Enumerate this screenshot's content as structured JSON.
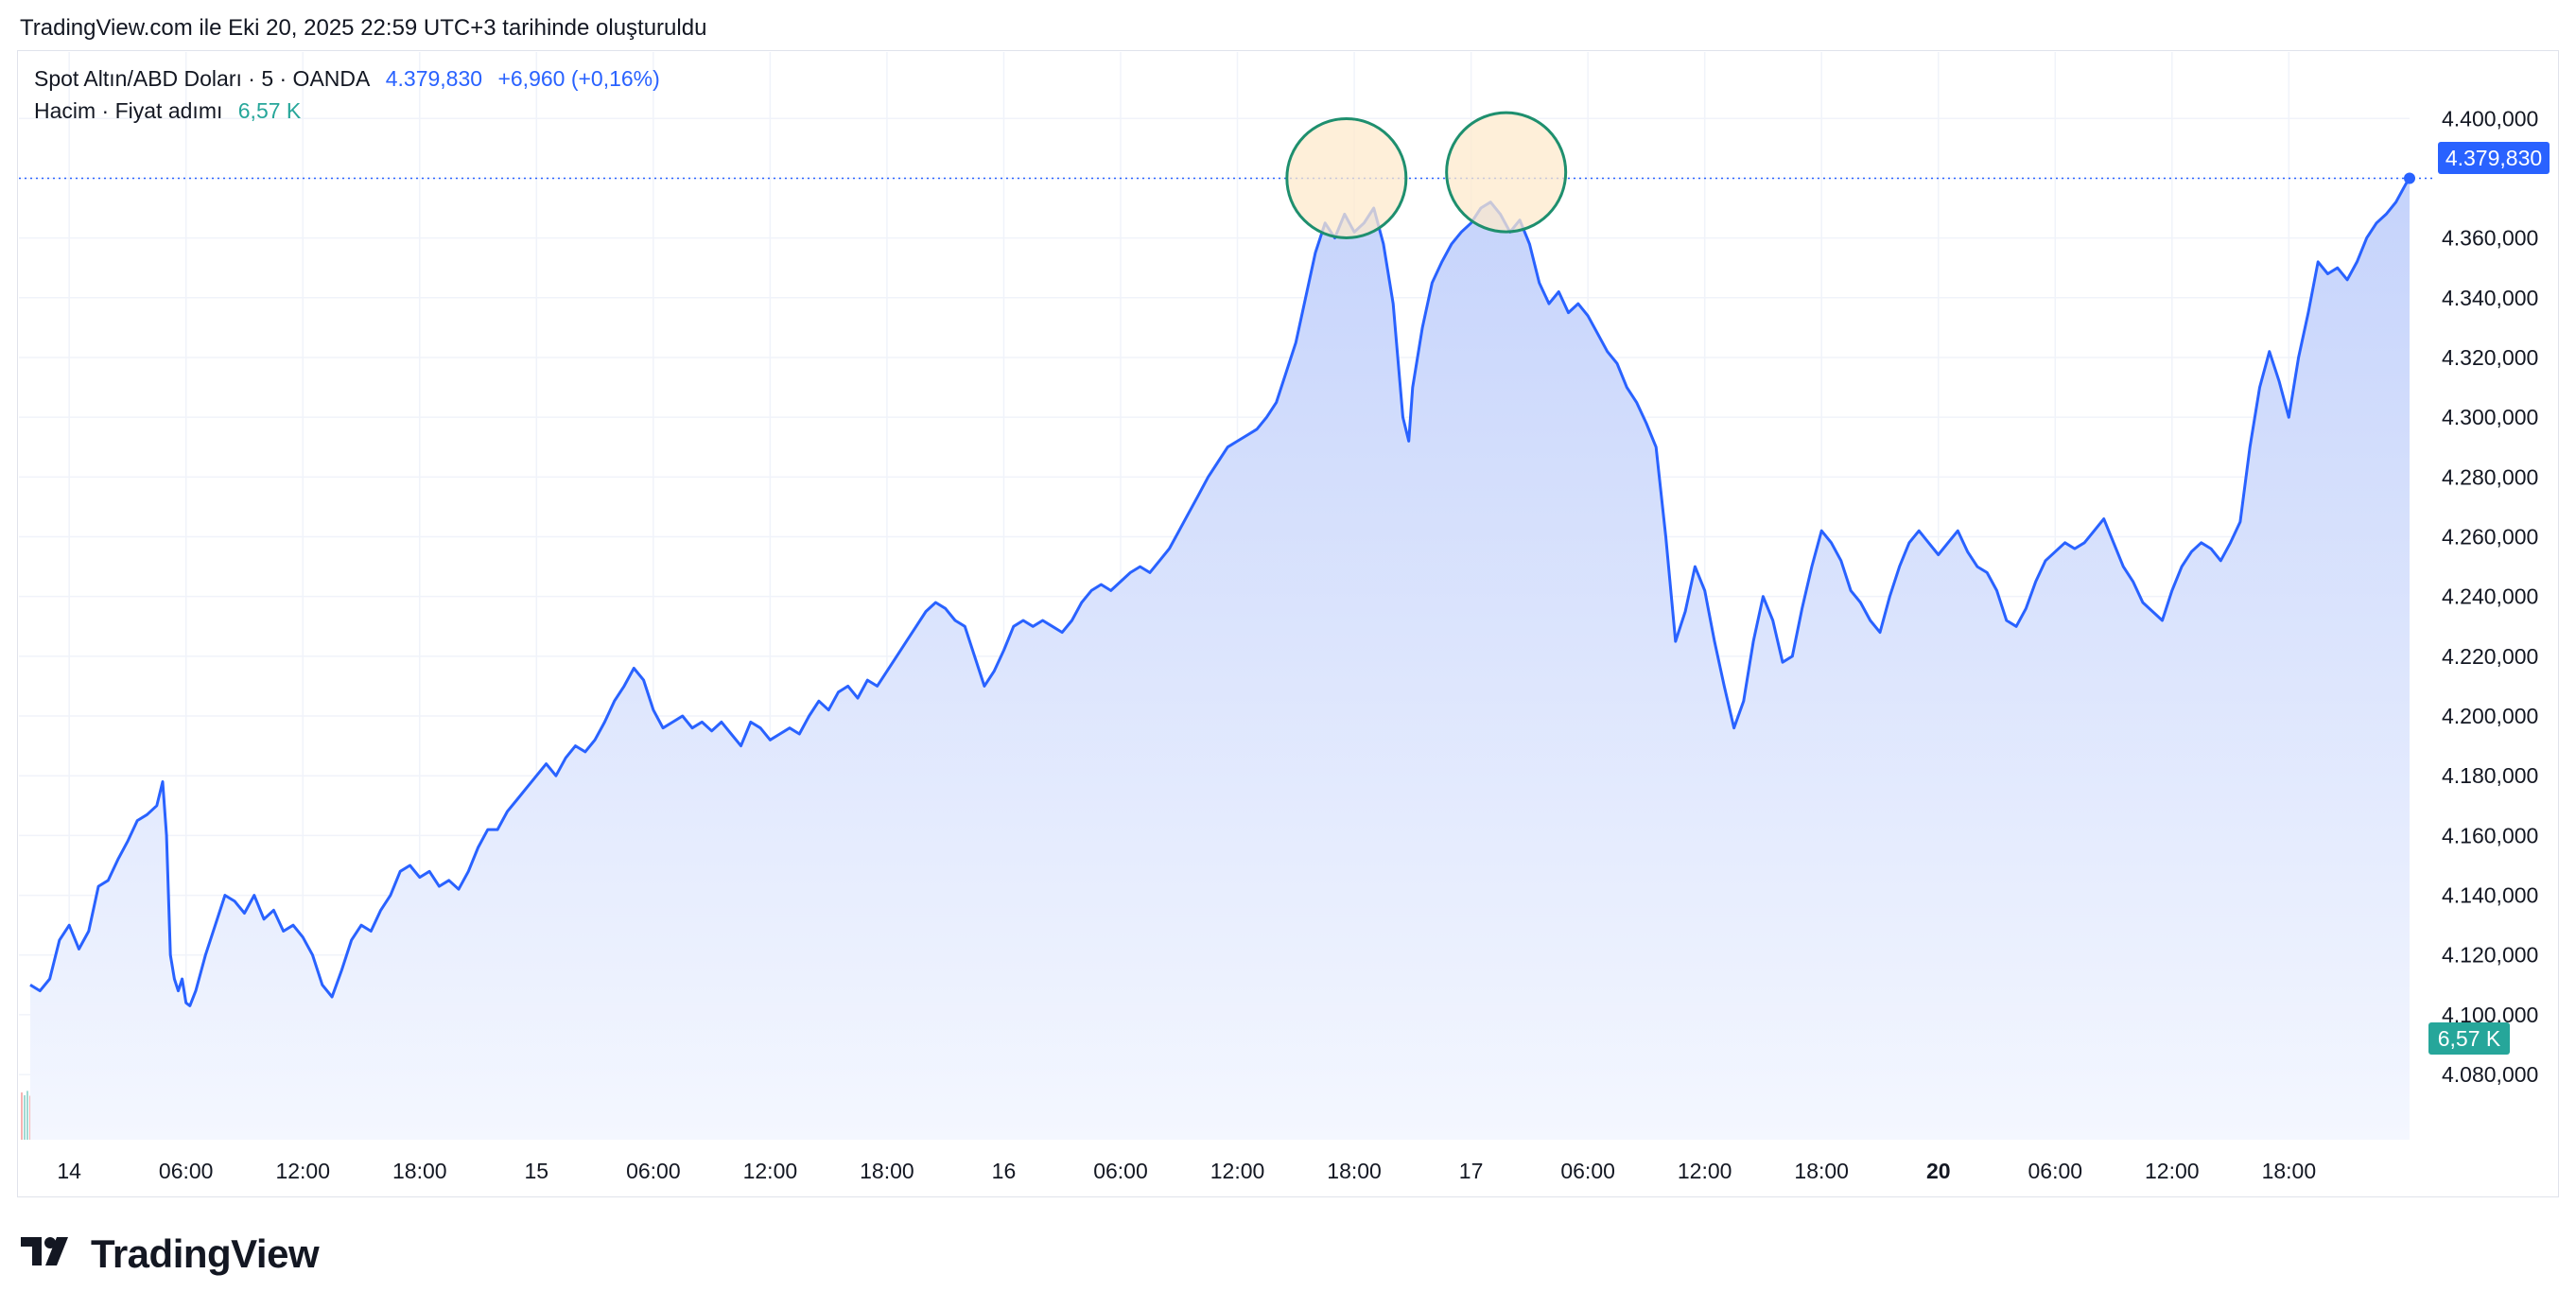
{
  "header": {
    "created_note": "TradingView.com ile Eki 20, 2025 22:59 UTC+3 tarihinde oluşturuldu"
  },
  "legend": {
    "symbol": "Spot Altın/ABD Doları · 5 · OANDA",
    "price": "4.379,830",
    "change": "+6,960 (+0,16%)",
    "volume_label": "Hacim · Fiyat adımı",
    "volume_value": "6,57 K"
  },
  "price_tag": "4.379,830",
  "volume_tag": "6,57 K",
  "brand": {
    "name": "TradingView"
  },
  "colors": {
    "line": "#2962ff",
    "area_top": "#c5d3fb",
    "area_bottom": "#f4f7ff",
    "vol_up": "#8fd3cb",
    "vol_down": "#f4a6a6",
    "circle_stroke": "#1e8f6e",
    "circle_fill": "#fde9cc",
    "grid": "#f0f3fa"
  },
  "chart_data": {
    "type": "area",
    "title": "",
    "ylabel": "",
    "ylim": [
      4068000,
      4408000
    ],
    "yticks": [
      4400000,
      4380000,
      4360000,
      4340000,
      4320000,
      4300000,
      4280000,
      4260000,
      4240000,
      4220000,
      4200000,
      4180000,
      4160000,
      4140000,
      4120000,
      4100000,
      4080000
    ],
    "ytick_labels": [
      "4.400,000",
      "",
      "4.360,000",
      "4.340,000",
      "4.320,000",
      "4.300,000",
      "4.280,000",
      "4.260,000",
      "4.240,000",
      "4.220,000",
      "4.200,000",
      "4.180,000",
      "4.160,000",
      "4.140,000",
      "4.120,000",
      "4.100,000",
      "4.080,000"
    ],
    "xlim": [
      -2,
      117
    ],
    "xticks": [
      {
        "x": 0,
        "label": "14",
        "bold": false
      },
      {
        "x": 6,
        "label": "06:00",
        "bold": false
      },
      {
        "x": 12,
        "label": "12:00",
        "bold": false
      },
      {
        "x": 18,
        "label": "18:00",
        "bold": false
      },
      {
        "x": 24,
        "label": "15",
        "bold": false
      },
      {
        "x": 30,
        "label": "06:00",
        "bold": false
      },
      {
        "x": 36,
        "label": "12:00",
        "bold": false
      },
      {
        "x": 42,
        "label": "18:00",
        "bold": false
      },
      {
        "x": 48,
        "label": "16",
        "bold": false
      },
      {
        "x": 54,
        "label": "06:00",
        "bold": false
      },
      {
        "x": 60,
        "label": "12:00",
        "bold": false
      },
      {
        "x": 66,
        "label": "18:00",
        "bold": false
      },
      {
        "x": 72,
        "label": "17",
        "bold": false
      },
      {
        "x": 78,
        "label": "06:00",
        "bold": false
      },
      {
        "x": 84,
        "label": "12:00",
        "bold": false
      },
      {
        "x": 90,
        "label": "18:00",
        "bold": false
      },
      {
        "x": 96,
        "label": "20",
        "bold": true
      },
      {
        "x": 102,
        "label": "06:00",
        "bold": false
      },
      {
        "x": 108,
        "label": "12:00",
        "bold": false
      },
      {
        "x": 114,
        "label": "18:00",
        "bold": false
      }
    ],
    "x_units": "hours since 14 Oct 00:00 (weekend gap collapsed)",
    "series": [
      {
        "values": [
          [
            -2,
            4110000
          ],
          [
            -1.5,
            4108000
          ],
          [
            -1,
            4112000
          ],
          [
            -0.5,
            4125000
          ],
          [
            0,
            4130000
          ],
          [
            0.5,
            4122000
          ],
          [
            1,
            4128000
          ],
          [
            1.5,
            4143000
          ],
          [
            2,
            4145000
          ],
          [
            2.5,
            4152000
          ],
          [
            3,
            4158000
          ],
          [
            3.5,
            4165000
          ],
          [
            4,
            4167000
          ],
          [
            4.5,
            4170000
          ],
          [
            4.8,
            4178000
          ],
          [
            5,
            4160000
          ],
          [
            5.2,
            4120000
          ],
          [
            5.4,
            4112000
          ],
          [
            5.6,
            4108000
          ],
          [
            5.8,
            4112000
          ],
          [
            6,
            4104000
          ],
          [
            6.2,
            4103000
          ],
          [
            6.5,
            4108000
          ],
          [
            7,
            4120000
          ],
          [
            7.5,
            4130000
          ],
          [
            8,
            4140000
          ],
          [
            8.5,
            4138000
          ],
          [
            9,
            4134000
          ],
          [
            9.5,
            4140000
          ],
          [
            10,
            4132000
          ],
          [
            10.5,
            4135000
          ],
          [
            11,
            4128000
          ],
          [
            11.5,
            4130000
          ],
          [
            12,
            4126000
          ],
          [
            12.5,
            4120000
          ],
          [
            13,
            4110000
          ],
          [
            13.5,
            4106000
          ],
          [
            14,
            4115000
          ],
          [
            14.5,
            4125000
          ],
          [
            15,
            4130000
          ],
          [
            15.5,
            4128000
          ],
          [
            16,
            4135000
          ],
          [
            16.5,
            4140000
          ],
          [
            17,
            4148000
          ],
          [
            17.5,
            4150000
          ],
          [
            18,
            4146000
          ],
          [
            18.5,
            4148000
          ],
          [
            19,
            4143000
          ],
          [
            19.5,
            4145000
          ],
          [
            20,
            4142000
          ],
          [
            20.5,
            4148000
          ],
          [
            21,
            4156000
          ],
          [
            21.5,
            4162000
          ],
          [
            22,
            4162000
          ],
          [
            22.5,
            4168000
          ],
          [
            23,
            4172000
          ],
          [
            23.5,
            4176000
          ],
          [
            24,
            4180000
          ],
          [
            24.5,
            4184000
          ],
          [
            25,
            4180000
          ],
          [
            25.5,
            4186000
          ],
          [
            26,
            4190000
          ],
          [
            26.5,
            4188000
          ],
          [
            27,
            4192000
          ],
          [
            27.5,
            4198000
          ],
          [
            28,
            4205000
          ],
          [
            28.5,
            4210000
          ],
          [
            29,
            4216000
          ],
          [
            29.5,
            4212000
          ],
          [
            30,
            4202000
          ],
          [
            30.5,
            4196000
          ],
          [
            31,
            4198000
          ],
          [
            31.5,
            4200000
          ],
          [
            32,
            4196000
          ],
          [
            32.5,
            4198000
          ],
          [
            33,
            4195000
          ],
          [
            33.5,
            4198000
          ],
          [
            34,
            4194000
          ],
          [
            34.5,
            4190000
          ],
          [
            35,
            4198000
          ],
          [
            35.5,
            4196000
          ],
          [
            36,
            4192000
          ],
          [
            36.5,
            4194000
          ],
          [
            37,
            4196000
          ],
          [
            37.5,
            4194000
          ],
          [
            38,
            4200000
          ],
          [
            38.5,
            4205000
          ],
          [
            39,
            4202000
          ],
          [
            39.5,
            4208000
          ],
          [
            40,
            4210000
          ],
          [
            40.5,
            4206000
          ],
          [
            41,
            4212000
          ],
          [
            41.5,
            4210000
          ],
          [
            42,
            4215000
          ],
          [
            42.5,
            4220000
          ],
          [
            43,
            4225000
          ],
          [
            43.5,
            4230000
          ],
          [
            44,
            4235000
          ],
          [
            44.5,
            4238000
          ],
          [
            45,
            4236000
          ],
          [
            45.5,
            4232000
          ],
          [
            46,
            4230000
          ],
          [
            46.5,
            4220000
          ],
          [
            47,
            4210000
          ],
          [
            47.5,
            4215000
          ],
          [
            48,
            4222000
          ],
          [
            48.5,
            4230000
          ],
          [
            49,
            4232000
          ],
          [
            49.5,
            4230000
          ],
          [
            50,
            4232000
          ],
          [
            50.5,
            4230000
          ],
          [
            51,
            4228000
          ],
          [
            51.5,
            4232000
          ],
          [
            52,
            4238000
          ],
          [
            52.5,
            4242000
          ],
          [
            53,
            4244000
          ],
          [
            53.5,
            4242000
          ],
          [
            54,
            4245000
          ],
          [
            54.5,
            4248000
          ],
          [
            55,
            4250000
          ],
          [
            55.5,
            4248000
          ],
          [
            56,
            4252000
          ],
          [
            56.5,
            4256000
          ],
          [
            57,
            4262000
          ],
          [
            57.5,
            4268000
          ],
          [
            58,
            4274000
          ],
          [
            58.5,
            4280000
          ],
          [
            59,
            4285000
          ],
          [
            59.5,
            4290000
          ],
          [
            60,
            4292000
          ],
          [
            60.5,
            4294000
          ],
          [
            61,
            4296000
          ],
          [
            61.5,
            4300000
          ],
          [
            62,
            4305000
          ],
          [
            62.5,
            4315000
          ],
          [
            63,
            4325000
          ],
          [
            63.5,
            4340000
          ],
          [
            64,
            4355000
          ],
          [
            64.5,
            4365000
          ],
          [
            65,
            4360000
          ],
          [
            65.5,
            4368000
          ],
          [
            66,
            4362000
          ],
          [
            66.5,
            4365000
          ],
          [
            67,
            4370000
          ],
          [
            67.5,
            4358000
          ],
          [
            68,
            4338000
          ],
          [
            68.5,
            4300000
          ],
          [
            68.8,
            4292000
          ],
          [
            69,
            4310000
          ],
          [
            69.5,
            4330000
          ],
          [
            70,
            4345000
          ],
          [
            70.5,
            4352000
          ],
          [
            71,
            4358000
          ],
          [
            71.5,
            4362000
          ],
          [
            72,
            4365000
          ],
          [
            72.5,
            4370000
          ],
          [
            73,
            4372000
          ],
          [
            73.5,
            4368000
          ],
          [
            74,
            4362000
          ],
          [
            74.5,
            4366000
          ],
          [
            75,
            4358000
          ],
          [
            75.5,
            4345000
          ],
          [
            76,
            4338000
          ],
          [
            76.5,
            4342000
          ],
          [
            77,
            4335000
          ],
          [
            77.5,
            4338000
          ],
          [
            78,
            4334000
          ],
          [
            78.5,
            4328000
          ],
          [
            79,
            4322000
          ],
          [
            79.5,
            4318000
          ],
          [
            80,
            4310000
          ],
          [
            80.5,
            4305000
          ],
          [
            81,
            4298000
          ],
          [
            81.5,
            4290000
          ],
          [
            82,
            4260000
          ],
          [
            82.5,
            4225000
          ],
          [
            83,
            4235000
          ],
          [
            83.5,
            4250000
          ],
          [
            84,
            4242000
          ],
          [
            84.5,
            4225000
          ],
          [
            85,
            4210000
          ],
          [
            85.5,
            4196000
          ],
          [
            86,
            4205000
          ],
          [
            86.5,
            4225000
          ],
          [
            87,
            4240000
          ],
          [
            87.5,
            4232000
          ],
          [
            88,
            4218000
          ],
          [
            88.5,
            4220000
          ],
          [
            89,
            4236000
          ],
          [
            89.5,
            4250000
          ],
          [
            90,
            4262000
          ],
          [
            90.5,
            4258000
          ],
          [
            91,
            4252000
          ],
          [
            91.5,
            4242000
          ],
          [
            92,
            4238000
          ],
          [
            92.5,
            4232000
          ],
          [
            93,
            4228000
          ],
          [
            93.5,
            4240000
          ],
          [
            94,
            4250000
          ],
          [
            94.5,
            4258000
          ],
          [
            95,
            4262000
          ],
          [
            95.5,
            4258000
          ],
          [
            96,
            4254000
          ],
          [
            96.5,
            4258000
          ],
          [
            97,
            4262000
          ],
          [
            97.5,
            4255000
          ],
          [
            98,
            4250000
          ],
          [
            98.5,
            4248000
          ],
          [
            99,
            4242000
          ],
          [
            99.5,
            4232000
          ],
          [
            100,
            4230000
          ],
          [
            100.5,
            4236000
          ],
          [
            101,
            4245000
          ],
          [
            101.5,
            4252000
          ],
          [
            102,
            4255000
          ],
          [
            102.5,
            4258000
          ],
          [
            103,
            4256000
          ],
          [
            103.5,
            4258000
          ],
          [
            104,
            4262000
          ],
          [
            104.5,
            4266000
          ],
          [
            105,
            4258000
          ],
          [
            105.5,
            4250000
          ],
          [
            106,
            4245000
          ],
          [
            106.5,
            4238000
          ],
          [
            107,
            4235000
          ],
          [
            107.5,
            4232000
          ],
          [
            108,
            4242000
          ],
          [
            108.5,
            4250000
          ],
          [
            109,
            4255000
          ],
          [
            109.5,
            4258000
          ],
          [
            110,
            4256000
          ],
          [
            110.5,
            4252000
          ],
          [
            111,
            4258000
          ],
          [
            111.5,
            4265000
          ],
          [
            112,
            4290000
          ],
          [
            112.5,
            4310000
          ],
          [
            113,
            4322000
          ],
          [
            113.5,
            4312000
          ],
          [
            114,
            4300000
          ],
          [
            114.5,
            4320000
          ],
          [
            115,
            4335000
          ],
          [
            115.5,
            4352000
          ],
          [
            116,
            4348000
          ],
          [
            116.5,
            4350000
          ],
          [
            117,
            4346000
          ],
          [
            117.5,
            4352000
          ],
          [
            118,
            4360000
          ],
          [
            118.5,
            4365000
          ],
          [
            119,
            4368000
          ],
          [
            119.5,
            4372000
          ],
          [
            120,
            4378000
          ],
          [
            120.2,
            4380000
          ]
        ]
      }
    ],
    "volume": {
      "label": "Hacim"
    },
    "annotations": [
      {
        "type": "circle",
        "x": 65.6,
        "y": 4380000,
        "radius_rel": "small"
      },
      {
        "type": "circle",
        "x": 73.8,
        "y": 4382000,
        "radius_rel": "small"
      }
    ]
  }
}
